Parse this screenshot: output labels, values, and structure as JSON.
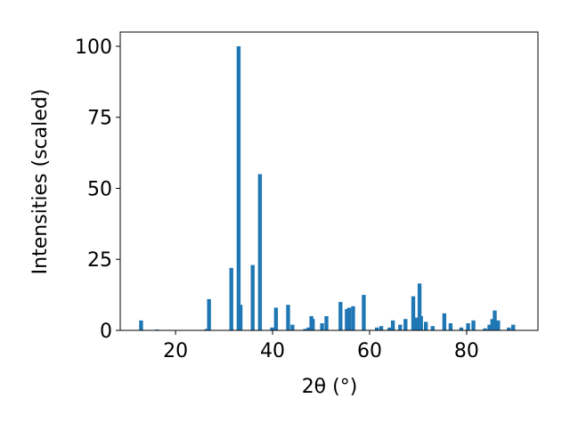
{
  "chart_data": {
    "type": "bar",
    "xlabel": "2θ (°)",
    "ylabel": "Intensities (scaled)",
    "x": [
      12.9,
      16.2,
      26.4,
      26.9,
      31.5,
      33.0,
      33.4,
      35.9,
      37.4,
      39.9,
      40.7,
      43.2,
      44.1,
      46.7,
      47.4,
      48.0,
      48.3,
      50.2,
      51.1,
      54.0,
      55.3,
      55.8,
      56.6,
      58.8,
      61.5,
      62.4,
      64.1,
      64.8,
      66.3,
      67.4,
      69.0,
      69.7,
      70.3,
      70.6,
      71.6,
      73.0,
      75.4,
      76.7,
      78.9,
      80.3,
      81.4,
      83.8,
      84.7,
      85.3,
      85.8,
      86.5,
      88.7,
      89.6
    ],
    "values": [
      3.5,
      0.3,
      0.5,
      11,
      22,
      100,
      9,
      23,
      55,
      1,
      8,
      9,
      2,
      0.5,
      1,
      5,
      4,
      2.5,
      5,
      10,
      7.5,
      8,
      8.5,
      12.5,
      1,
      1.5,
      1,
      3.5,
      2,
      4,
      12,
      4.5,
      16.5,
      5,
      3,
      1.5,
      6,
      2.5,
      1,
      2.5,
      3.5,
      0.7,
      2,
      4,
      7,
      3.5,
      1,
      2
    ],
    "color": "#1f77b4",
    "xlim": [
      8.6,
      94.7
    ],
    "xticks": [
      20,
      40,
      60,
      80
    ],
    "ylim": [
      0,
      105
    ],
    "yticks": [
      0,
      25,
      50,
      75,
      100
    ]
  }
}
